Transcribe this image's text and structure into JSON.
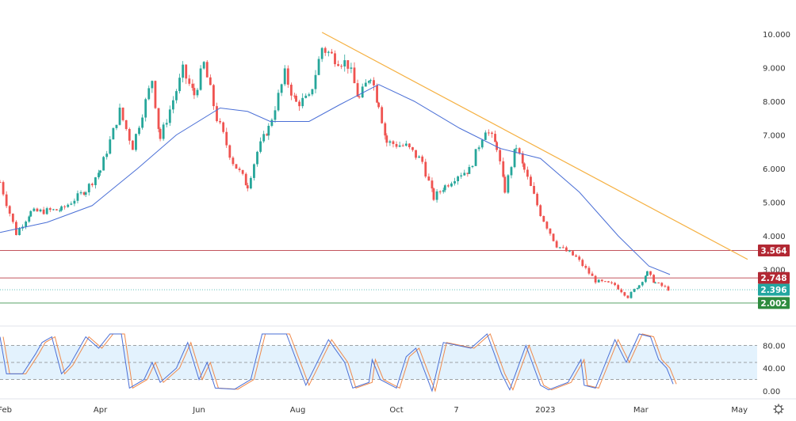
{
  "chart_data": {
    "type": "candlestick",
    "price_axis": {
      "ticks": [
        "10.000",
        "9.000",
        "8.000",
        "7.000",
        "6.000",
        "5.000",
        "4.000",
        "3.000"
      ],
      "range": [
        1.6,
        10.5
      ]
    },
    "time_axis": {
      "ticks": [
        {
          "label": "Feb",
          "date": "2022-02-01"
        },
        {
          "label": "Apr",
          "date": "2022-04-01"
        },
        {
          "label": "Jun",
          "date": "2022-06-01"
        },
        {
          "label": "Aug",
          "date": "2022-08-01"
        },
        {
          "label": "Oct",
          "date": "2022-10-01"
        },
        {
          "label": "7",
          "date": "2022-11-07"
        },
        {
          "label": "2023",
          "date": "2023-01-01"
        },
        {
          "label": "Mar",
          "date": "2023-03-01"
        },
        {
          "label": "May",
          "date": "2023-05-01"
        }
      ],
      "range": [
        "2022-01-29",
        "2023-05-07"
      ]
    },
    "price_path": [
      [
        "2022-01-29",
        5.6
      ],
      [
        "2022-02-08",
        4.07
      ],
      [
        "2022-02-17",
        4.7
      ],
      [
        "2022-03-08",
        4.78
      ],
      [
        "2022-03-23",
        5.36
      ],
      [
        "2022-04-01",
        5.95
      ],
      [
        "2022-04-13",
        7.7
      ],
      [
        "2022-04-21",
        6.66
      ],
      [
        "2022-05-03",
        8.66
      ],
      [
        "2022-05-08",
        6.9
      ],
      [
        "2022-05-22",
        8.9
      ],
      [
        "2022-05-29",
        8.2
      ],
      [
        "2022-06-04",
        9.1
      ],
      [
        "2022-06-12",
        7.5
      ],
      [
        "2022-06-22",
        6.2
      ],
      [
        "2022-07-01",
        5.5
      ],
      [
        "2022-07-07",
        6.5
      ],
      [
        "2022-07-14",
        7.2
      ],
      [
        "2022-07-24",
        8.8
      ],
      [
        "2022-07-31",
        7.95
      ],
      [
        "2022-08-08",
        8.07
      ],
      [
        "2022-08-16",
        9.6
      ],
      [
        "2022-08-22",
        9.36
      ],
      [
        "2022-09-01",
        9.1
      ],
      [
        "2022-09-08",
        8.07
      ],
      [
        "2022-09-15",
        8.8
      ],
      [
        "2022-09-20",
        7.95
      ],
      [
        "2022-09-25",
        6.78
      ],
      [
        "2022-10-07",
        6.66
      ],
      [
        "2022-10-17",
        6.2
      ],
      [
        "2022-10-24",
        5.13
      ],
      [
        "2022-10-31",
        5.48
      ],
      [
        "2022-11-08",
        5.83
      ],
      [
        "2022-11-15",
        5.95
      ],
      [
        "2022-11-25",
        7.2
      ],
      [
        "2022-12-02",
        6.66
      ],
      [
        "2022-12-07",
        5.36
      ],
      [
        "2022-12-14",
        6.66
      ],
      [
        "2022-12-19",
        5.95
      ],
      [
        "2022-12-29",
        4.66
      ],
      [
        "2023-01-08",
        3.72
      ],
      [
        "2023-01-20",
        3.36
      ],
      [
        "2023-02-01",
        2.66
      ],
      [
        "2023-02-13",
        2.54
      ],
      [
        "2023-02-21",
        2.19
      ],
      [
        "2023-02-28",
        2.54
      ],
      [
        "2023-03-05",
        2.9
      ],
      [
        "2023-03-10",
        2.6
      ],
      [
        "2023-03-19",
        2.396
      ]
    ],
    "moving_average": [
      [
        "2022-01-29",
        4.1
      ],
      [
        "2022-02-27",
        4.4
      ],
      [
        "2022-03-27",
        4.9
      ],
      [
        "2022-04-24",
        6.0
      ],
      [
        "2022-05-18",
        7.0
      ],
      [
        "2022-06-14",
        7.8
      ],
      [
        "2022-07-01",
        7.7
      ],
      [
        "2022-07-15",
        7.4
      ],
      [
        "2022-08-08",
        7.4
      ],
      [
        "2022-08-27",
        7.9
      ],
      [
        "2022-09-20",
        8.5
      ],
      [
        "2022-10-12",
        8.0
      ],
      [
        "2022-11-09",
        7.2
      ],
      [
        "2022-12-04",
        6.6
      ],
      [
        "2022-12-29",
        6.3
      ],
      [
        "2023-01-22",
        5.3
      ],
      [
        "2023-02-15",
        4.0
      ],
      [
        "2023-03-06",
        3.1
      ],
      [
        "2023-03-19",
        2.85
      ]
    ],
    "trendline": [
      [
        "2022-08-16",
        10.05
      ],
      [
        "2023-05-06",
        3.3
      ]
    ],
    "trendline_color": "#f5b041",
    "ma_color": "#4a6fd6",
    "up_color": "#26a69a",
    "down_color": "#ef5350",
    "levels": [
      {
        "label": "3.564",
        "value": 3.564,
        "color": "#b22833",
        "style": "solid"
      },
      {
        "label": "2.748",
        "value": 2.748,
        "color": "#b22833",
        "style": "solid"
      },
      {
        "label": "2.396",
        "value": 2.396,
        "color": "#22a6a0",
        "style": "dotted"
      },
      {
        "label": "2.002",
        "value": 2.002,
        "color": "#2e8b3e",
        "style": "solid"
      }
    ],
    "stochastic": {
      "ticks": [
        "80.00",
        "40.00",
        "0.00"
      ],
      "bands": [
        80,
        50,
        20
      ],
      "k_color": "#4a6fd6",
      "d_color": "#f08a4b",
      "band_fill": "#e3f2fd",
      "k": [
        [
          "2022-01-29",
          95
        ],
        [
          "2022-02-02",
          30
        ],
        [
          "2022-02-12",
          30
        ],
        [
          "2022-02-20",
          65
        ],
        [
          "2022-02-24",
          85
        ],
        [
          "2022-03-02",
          95
        ],
        [
          "2022-03-08",
          30
        ],
        [
          "2022-03-13",
          45
        ],
        [
          "2022-03-23",
          95
        ],
        [
          "2022-03-31",
          75
        ],
        [
          "2022-04-07",
          100
        ],
        [
          "2022-04-14",
          100
        ],
        [
          "2022-04-19",
          5
        ],
        [
          "2022-04-28",
          20
        ],
        [
          "2022-05-03",
          50
        ],
        [
          "2022-05-08",
          15
        ],
        [
          "2022-05-18",
          40
        ],
        [
          "2022-05-25",
          85
        ],
        [
          "2022-06-01",
          20
        ],
        [
          "2022-06-06",
          50
        ],
        [
          "2022-06-11",
          5
        ],
        [
          "2022-06-23",
          3
        ],
        [
          "2022-07-03",
          20
        ],
        [
          "2022-07-10",
          100
        ],
        [
          "2022-07-25",
          100
        ],
        [
          "2022-08-06",
          10
        ],
        [
          "2022-08-20",
          90
        ],
        [
          "2022-08-30",
          50
        ],
        [
          "2022-09-04",
          5
        ],
        [
          "2022-09-14",
          15
        ],
        [
          "2022-09-16",
          55
        ],
        [
          "2022-09-21",
          20
        ],
        [
          "2022-10-01",
          5
        ],
        [
          "2022-10-07",
          60
        ],
        [
          "2022-10-13",
          75
        ],
        [
          "2022-10-23",
          0
        ],
        [
          "2022-10-30",
          85
        ],
        [
          "2022-11-16",
          75
        ],
        [
          "2022-11-26",
          100
        ],
        [
          "2022-12-05",
          30
        ],
        [
          "2022-12-10",
          2
        ],
        [
          "2022-12-20",
          80
        ],
        [
          "2022-12-29",
          10
        ],
        [
          "2023-01-03",
          2
        ],
        [
          "2023-01-15",
          15
        ],
        [
          "2023-01-23",
          55
        ],
        [
          "2023-01-25",
          10
        ],
        [
          "2023-02-01",
          5
        ],
        [
          "2023-02-13",
          90
        ],
        [
          "2023-02-20",
          50
        ],
        [
          "2023-02-28",
          100
        ],
        [
          "2023-03-07",
          95
        ],
        [
          "2023-03-12",
          55
        ],
        [
          "2023-03-17",
          40
        ],
        [
          "2023-03-21",
          12
        ]
      ]
    }
  }
}
